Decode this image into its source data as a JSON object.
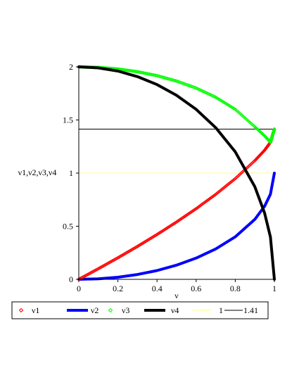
{
  "chart_data": {
    "type": "line",
    "xlabel": "ν",
    "ylabel": "ν1,ν2,ν3,ν4",
    "xlim": [
      0,
      1
    ],
    "ylim": [
      0,
      2
    ],
    "x_ticks": [
      "0",
      "0.2",
      "0.4",
      "0.6",
      "0.8",
      "1"
    ],
    "y_ticks": [
      "0",
      "0.5",
      "1",
      "1.5",
      "2"
    ],
    "x_tick_values": [
      0,
      0.2,
      0.4,
      0.6,
      0.8,
      1
    ],
    "y_tick_values": [
      0,
      0.5,
      1,
      1.5,
      2
    ],
    "grid": false,
    "legend_position": "bottom",
    "x": [
      0,
      0.1,
      0.2,
      0.3,
      0.4,
      0.5,
      0.6,
      0.7,
      0.8,
      0.9,
      0.95,
      0.98,
      1.0
    ],
    "series": [
      {
        "name": "ν1",
        "color": "#ff0000",
        "style": "diamond-points",
        "values": [
          0,
          0.1,
          0.203,
          0.31,
          0.422,
          0.54,
          0.665,
          0.8,
          0.948,
          1.117,
          1.215,
          1.29,
          1.414
        ]
      },
      {
        "name": "ν2",
        "color": "#0000ff",
        "style": "thick-line",
        "values": [
          0,
          0.005,
          0.02,
          0.046,
          0.083,
          0.134,
          0.2,
          0.286,
          0.4,
          0.564,
          0.688,
          0.801,
          1.0
        ]
      },
      {
        "name": "ν3",
        "color": "#00ff00",
        "style": "diamond-points",
        "values": [
          2.0,
          1.995,
          1.98,
          1.954,
          1.917,
          1.866,
          1.8,
          1.714,
          1.6,
          1.436,
          1.35,
          1.29,
          1.414
        ]
      },
      {
        "name": "ν4",
        "color": "#000000",
        "style": "thick-line",
        "values": [
          2.0,
          1.99,
          1.96,
          1.908,
          1.833,
          1.732,
          1.6,
          1.428,
          1.2,
          0.872,
          0.624,
          0.398,
          0.0
        ]
      },
      {
        "name": "1",
        "color": "#ffff80",
        "style": "thin-line",
        "values": [
          1,
          1,
          1,
          1,
          1,
          1,
          1,
          1,
          1,
          1,
          1,
          1,
          1
        ]
      },
      {
        "name": "1.41",
        "color": "#000000",
        "style": "thin-line",
        "values": [
          1.414,
          1.414,
          1.414,
          1.414,
          1.414,
          1.414,
          1.414,
          1.414,
          1.414,
          1.414,
          1.414,
          1.414,
          1.414
        ]
      }
    ]
  }
}
